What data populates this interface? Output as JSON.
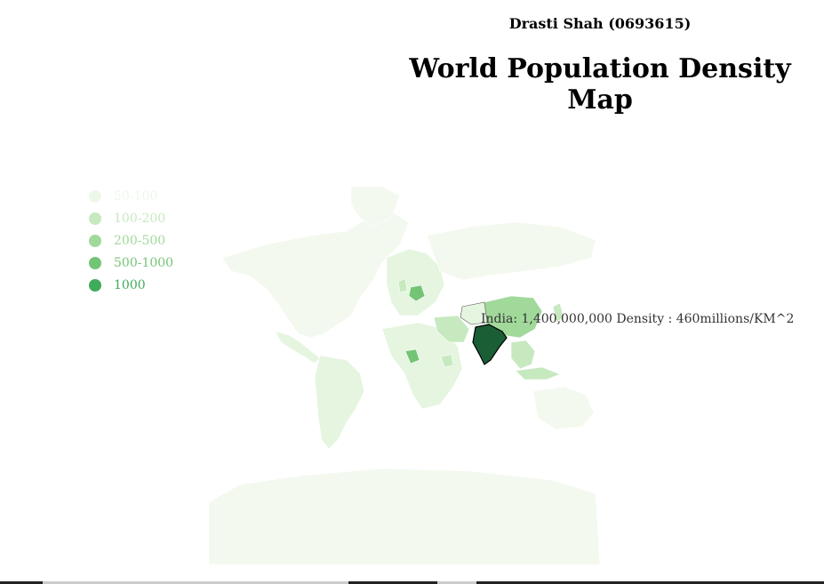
{
  "header": {
    "author": "Drasti Shah (0693615)",
    "title": "World Population Density Map"
  },
  "legend": {
    "items": [
      {
        "label": "50-100",
        "color": "#edf8e9"
      },
      {
        "label": "100-200",
        "color": "#c7e9c0"
      },
      {
        "label": "200-500",
        "color": "#a1d99b"
      },
      {
        "label": "500-1000",
        "color": "#74c476"
      },
      {
        "label": "1000",
        "color": "#41ab5d"
      }
    ]
  },
  "tooltip": {
    "text": "India: 1,400,000,000 Density : 460millions/KM^2"
  },
  "map_data": {
    "type": "choropleth",
    "highlighted_region": "India",
    "region_colors": {
      "base": "#f3f9ef",
      "light": "#e5f5e0",
      "mid": "#c7e9c0",
      "strong": "#a1d99b",
      "deep": "#74c476",
      "highlight": "#1a5e35"
    }
  }
}
